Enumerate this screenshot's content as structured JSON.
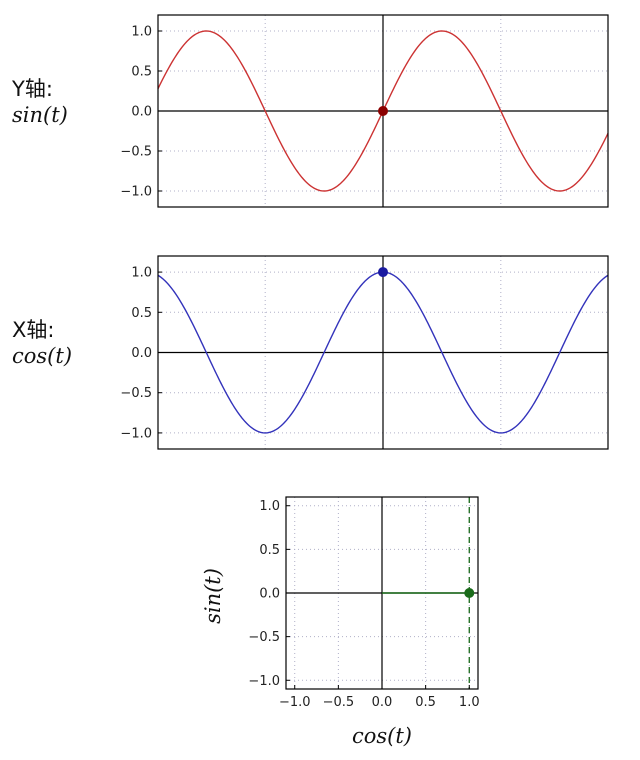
{
  "labels": {
    "y_axis_name": "Y轴:",
    "y_axis_func": "sin(t)",
    "x_axis_name": "X轴:",
    "x_axis_func": "cos(t)",
    "bottom_ylabel": "sin(t)",
    "bottom_xlabel": "cos(t)"
  },
  "colors": {
    "sin": "#cc3333",
    "cos": "#3333bb",
    "point": "#1a6b1a",
    "axes": "#000000",
    "grid": "#b0b0c8"
  },
  "chart_data": [
    {
      "type": "line",
      "name": "sin-panel",
      "function": "sin",
      "x_range_radians": [
        -6.0,
        6.0
      ],
      "ylim": [
        -1.2,
        1.2
      ],
      "yticks": [
        1.0,
        0.5,
        0.0,
        -0.5,
        -1.0
      ],
      "ytick_labels": [
        "1.0",
        "0.5",
        "0.0",
        "−0.5",
        "−1.0"
      ],
      "grid": true,
      "marker": {
        "t": 0.0,
        "value": 0.0
      }
    },
    {
      "type": "line",
      "name": "cos-panel",
      "function": "cos",
      "x_range_radians": [
        -6.0,
        6.0
      ],
      "ylim": [
        -1.2,
        1.2
      ],
      "yticks": [
        1.0,
        0.5,
        0.0,
        -0.5,
        -1.0
      ],
      "ytick_labels": [
        "1.0",
        "0.5",
        "0.0",
        "−0.5",
        "−1.0"
      ],
      "grid": true,
      "marker": {
        "t": 0.0,
        "value": 1.0
      }
    },
    {
      "type": "scatter",
      "name": "unit-circle-panel",
      "xlim": [
        -1.1,
        1.1
      ],
      "ylim": [
        -1.1,
        1.1
      ],
      "xticks": [
        -1.0,
        -0.5,
        0.0,
        0.5,
        1.0
      ],
      "xtick_labels": [
        "−1.0",
        "−0.5",
        "0.0",
        "0.5",
        "1.0"
      ],
      "yticks": [
        1.0,
        0.5,
        0.0,
        -0.5,
        -1.0
      ],
      "ytick_labels": [
        "1.0",
        "0.5",
        "0.0",
        "−0.5",
        "−1.0"
      ],
      "grid": true,
      "point": {
        "x": 1.0,
        "y": 0.0
      },
      "guide_line": {
        "x": 1.0,
        "style": "dashed"
      }
    }
  ]
}
